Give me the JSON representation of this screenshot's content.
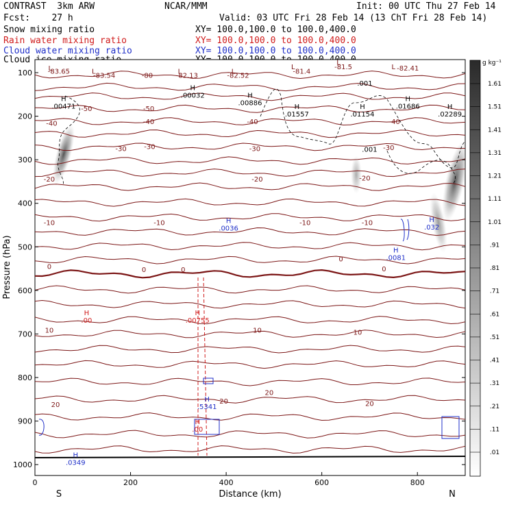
{
  "header": {
    "model": "CONTRAST  3km ARW",
    "forecast": "Fcst:    27 h",
    "center": "NCAR/MMM",
    "init": "Init: 00 UTC Thu 27 Feb 14",
    "valid": "Valid: 03 UTC Fri 28 Feb 14 (13 ChT Fri 28 Feb 14)",
    "fields": [
      {
        "name": "Snow mixing ratio",
        "xy": "XY= 100.0,100.0 to 100.0,400.0",
        "color": "#000000"
      },
      {
        "name": "Rain water mixing ratio",
        "xy": "XY= 100.0,100.0 to 100.0,400.0",
        "color": "#d01c1c"
      },
      {
        "name": "Cloud water mixing ratio",
        "xy": "XY= 100.0,100.0 to 100.0,400.0",
        "color": "#1f2fc8"
      },
      {
        "name": "Cloud ice mixing ratio",
        "xy": "XY= 100.0,100.0 to 100.0,400.0",
        "color": "#000000"
      }
    ]
  },
  "chart_data": {
    "type": "cross-section contour",
    "xlabel": "Distance (km)",
    "ylabel": "Pressure (hPa)",
    "xlim": [
      0,
      900
    ],
    "ylim": [
      1025,
      70
    ],
    "xticks": [
      0,
      200,
      400,
      600,
      800
    ],
    "yticks": [
      100,
      200,
      300,
      400,
      500,
      600,
      700,
      800,
      900,
      1000
    ],
    "end_labels": {
      "left": "S",
      "right": "N"
    },
    "temperature_isotherms": {
      "color": "#7b1515",
      "levels": [
        {
          "t": -80,
          "p": 105
        },
        {
          "t": -70,
          "p": 133
        },
        {
          "t": -60,
          "p": 155
        },
        {
          "t": -50,
          "p": 183
        },
        {
          "t": -40,
          "p": 212
        },
        {
          "t": -30,
          "p": 240
        },
        {
          "t": -20,
          "p": 270
        },
        {
          "t": -10,
          "p": 302
        },
        {
          "t": -10,
          "p": 330
        },
        {
          "t": -10,
          "p": 362
        },
        {
          "t": -10,
          "p": 398
        },
        {
          "t": -10,
          "p": 432
        },
        {
          "t": -10,
          "p": 465
        },
        {
          "t": -10,
          "p": 498
        },
        {
          "t": 0,
          "p": 530
        },
        {
          "t": 0,
          "p": 562
        },
        {
          "t": 0,
          "p": 598
        },
        {
          "t": 10,
          "p": 632
        },
        {
          "t": 10,
          "p": 668
        },
        {
          "t": 10,
          "p": 700
        },
        {
          "t": 10,
          "p": 735
        },
        {
          "t": 10,
          "p": 770
        },
        {
          "t": 20,
          "p": 810
        },
        {
          "t": 20,
          "p": 850
        },
        {
          "t": 20,
          "p": 890
        },
        {
          "t": 20,
          "p": 930
        },
        {
          "t": 20,
          "p": 965
        }
      ]
    },
    "contour_labels": [
      {
        "text": "-83.65",
        "x": 50,
        "p": 102,
        "c": "#7b1515"
      },
      {
        "text": "-83.54",
        "x": 145,
        "p": 112,
        "c": "#7b1515"
      },
      {
        "text": "-80",
        "x": 235,
        "p": 112,
        "c": "#7b1515"
      },
      {
        "text": "-82.13",
        "x": 318,
        "p": 112,
        "c": "#7b1515"
      },
      {
        "text": "-82.52",
        "x": 425,
        "p": 112,
        "c": "#7b1515"
      },
      {
        "text": "-81.4",
        "x": 558,
        "p": 102,
        "c": "#7b1515"
      },
      {
        "text": "-81.5",
        "x": 645,
        "p": 92,
        "c": "#7b1515"
      },
      {
        "text": "-82.41",
        "x": 780,
        "p": 95,
        "c": "#7b1515"
      },
      {
        "text": "-50",
        "x": 108,
        "p": 188,
        "c": "#7b1515"
      },
      {
        "text": "-50",
        "x": 238,
        "p": 188,
        "c": "#7b1515"
      },
      {
        "text": "-40",
        "x": 35,
        "p": 222,
        "c": "#7b1515"
      },
      {
        "text": "-40",
        "x": 238,
        "p": 218,
        "c": "#7b1515"
      },
      {
        "text": "-40",
        "x": 455,
        "p": 218,
        "c": "#7b1515"
      },
      {
        "text": "-40",
        "x": 752,
        "p": 218,
        "c": "#7b1515"
      },
      {
        "text": "-30",
        "x": 180,
        "p": 280,
        "c": "#7b1515"
      },
      {
        "text": "-30",
        "x": 240,
        "p": 275,
        "c": "#7b1515"
      },
      {
        "text": "-30",
        "x": 460,
        "p": 280,
        "c": "#7b1515"
      },
      {
        "text": "-30",
        "x": 740,
        "p": 278,
        "c": "#7b1515"
      },
      {
        "text": "-20",
        "x": 30,
        "p": 350,
        "c": "#7b1515"
      },
      {
        "text": "-20",
        "x": 465,
        "p": 350,
        "c": "#7b1515"
      },
      {
        "text": "-20",
        "x": 690,
        "p": 348,
        "c": "#7b1515"
      },
      {
        "text": "-10",
        "x": 30,
        "p": 450,
        "c": "#7b1515"
      },
      {
        "text": "-10",
        "x": 260,
        "p": 450,
        "c": "#7b1515"
      },
      {
        "text": "-10",
        "x": 565,
        "p": 450,
        "c": "#7b1515"
      },
      {
        "text": "-10",
        "x": 695,
        "p": 450,
        "c": "#7b1515"
      },
      {
        "text": "0",
        "x": 30,
        "p": 551,
        "c": "#7b1515"
      },
      {
        "text": "0",
        "x": 228,
        "p": 558,
        "c": "#7b1515"
      },
      {
        "text": "0",
        "x": 310,
        "p": 558,
        "c": "#7b1515"
      },
      {
        "text": "0",
        "x": 640,
        "p": 533,
        "c": "#7b1515"
      },
      {
        "text": "0",
        "x": 730,
        "p": 556,
        "c": "#7b1515"
      },
      {
        "text": "10",
        "x": 30,
        "p": 697,
        "c": "#7b1515"
      },
      {
        "text": "10",
        "x": 465,
        "p": 697,
        "c": "#7b1515"
      },
      {
        "text": "10",
        "x": 675,
        "p": 702,
        "c": "#7b1515"
      },
      {
        "text": "20",
        "x": 43,
        "p": 868,
        "c": "#7b1515"
      },
      {
        "text": "20",
        "x": 395,
        "p": 860,
        "c": "#7b1515"
      },
      {
        "text": "20",
        "x": 490,
        "p": 840,
        "c": "#7b1515"
      },
      {
        "text": "20",
        "x": 700,
        "p": 865,
        "c": "#7b1515"
      },
      {
        "text": ".001",
        "x": 690,
        "p": 130,
        "c": "#000000"
      },
      {
        "text": ".001",
        "x": 700,
        "p": 282,
        "c": "#000000"
      }
    ],
    "extrema": [
      {
        "kind": "L",
        "x": 32,
        "p": 95,
        "c": "#7b1515"
      },
      {
        "kind": "L",
        "x": 123,
        "p": 102,
        "c": "#7b1515"
      },
      {
        "kind": "L",
        "x": 303,
        "p": 102,
        "c": "#7b1515"
      },
      {
        "kind": "L",
        "x": 415,
        "p": 102,
        "c": "#7b1515"
      },
      {
        "kind": "L",
        "x": 540,
        "p": 92,
        "c": "#7b1515"
      },
      {
        "kind": "L",
        "x": 635,
        "p": 82,
        "c": "#7b1515"
      },
      {
        "kind": "L",
        "x": 750,
        "p": 92,
        "c": "#7b1515"
      },
      {
        "kind": "H",
        "value": ".00471",
        "x": 60,
        "p": 165,
        "c": "#000000"
      },
      {
        "kind": "H",
        "value": ".00032",
        "x": 330,
        "p": 140,
        "c": "#000000"
      },
      {
        "kind": "H",
        "value": ".00886",
        "x": 450,
        "p": 157,
        "c": "#000000"
      },
      {
        "kind": "H",
        "value": ".01557",
        "x": 548,
        "p": 183,
        "c": "#000000"
      },
      {
        "kind": "H",
        "value": ".01154",
        "x": 685,
        "p": 183,
        "c": "#000000"
      },
      {
        "kind": "H",
        "value": ".01686",
        "x": 780,
        "p": 165,
        "c": "#000000"
      },
      {
        "kind": "H",
        "value": ".02289",
        "x": 868,
        "p": 183,
        "c": "#000000"
      },
      {
        "kind": "H",
        "value": ".0036",
        "x": 405,
        "p": 445,
        "c": "#1f2fc8"
      },
      {
        "kind": "H",
        "value": ".032",
        "x": 830,
        "p": 443,
        "c": "#1f2fc8"
      },
      {
        "kind": "H",
        "value": ".0081",
        "x": 755,
        "p": 513,
        "c": "#1f2fc8"
      },
      {
        "kind": "H",
        "value": ".00",
        "x": 108,
        "p": 657,
        "c": "#d01c1c"
      },
      {
        "kind": "H",
        "value": ".00755",
        "x": 340,
        "p": 657,
        "c": "#d01c1c"
      },
      {
        "kind": "H",
        "value": ".5341",
        "x": 360,
        "p": 855,
        "c": "#1f2fc8"
      },
      {
        "kind": "H",
        "value": ".00",
        "x": 340,
        "p": 907,
        "c": "#d01c1c"
      },
      {
        "kind": "H",
        "value": ".0349",
        "x": 85,
        "p": 983,
        "c": "#1f2fc8"
      }
    ]
  },
  "colorbar": {
    "unit": "g kg⁻¹",
    "ticks": [
      "1.61",
      "1.51",
      "1.41",
      "1.31",
      "1.21",
      "1.11",
      "1.01",
      ".91",
      ".81",
      ".71",
      ".61",
      ".51",
      ".41",
      ".31",
      ".21",
      ".11",
      ".01"
    ]
  }
}
